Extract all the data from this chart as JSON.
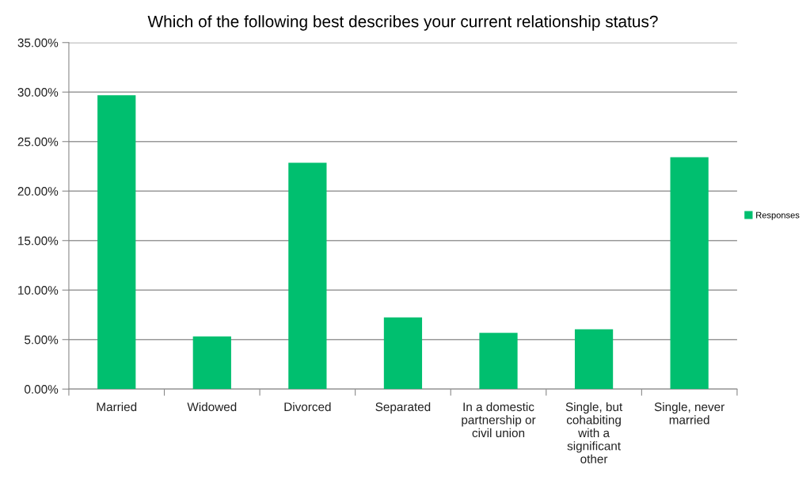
{
  "chart_data": {
    "type": "bar",
    "title": "Which of the following best describes your current relationship status?",
    "categories": [
      "Married",
      "Widowed",
      "Divorced",
      "Separated",
      "In a domestic partnership or civil union",
      "Single, but cohabiting with a significant other",
      "Single, never married"
    ],
    "series": [
      {
        "name": "Responses",
        "color": "#00bf6f",
        "values": [
          29.67,
          5.33,
          22.86,
          7.25,
          5.68,
          6.04,
          23.43
        ]
      }
    ],
    "ylim": [
      0,
      35
    ],
    "yticks": [
      {
        "value": 0,
        "label": "0.00%"
      },
      {
        "value": 5,
        "label": "5.00%"
      },
      {
        "value": 10,
        "label": "10.00%"
      },
      {
        "value": 15,
        "label": "15.00%"
      },
      {
        "value": 20,
        "label": "20.00%"
      },
      {
        "value": 25,
        "label": "25.00%"
      },
      {
        "value": 30,
        "label": "30.00%"
      },
      {
        "value": 35,
        "label": "35.00%"
      }
    ],
    "grid": "y",
    "legend": "right"
  }
}
